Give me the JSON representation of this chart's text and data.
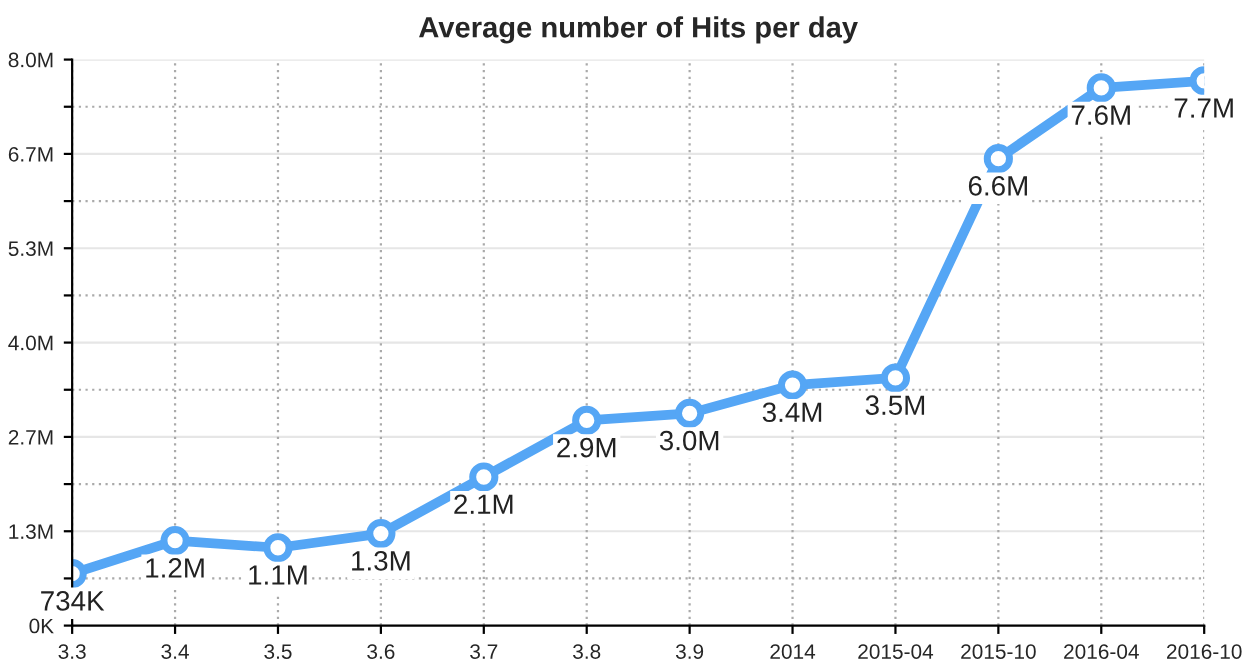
{
  "chart_data": {
    "type": "line",
    "title": "Average number of Hits per day",
    "categories": [
      "3.3",
      "3.4",
      "3.5",
      "3.6",
      "3.7",
      "3.8",
      "3.9",
      "2014",
      "2015-04",
      "2015-10",
      "2016-04",
      "2016-10"
    ],
    "series": [
      {
        "color": "#55a6f5",
        "values": [
          734000,
          1200000,
          1100000,
          1300000,
          2100000,
          2900000,
          3000000,
          3400000,
          3500000,
          6600000,
          7600000,
          7700000
        ],
        "value_labels": [
          "734K",
          "1.2M",
          "1.1M",
          "1.3M",
          "2.1M",
          "2.9M",
          "3.0M",
          "3.4M",
          "3.5M",
          "6.6M",
          "7.6M",
          "7.7M"
        ]
      }
    ],
    "ylim": [
      0,
      8000000
    ],
    "yticks": [
      {
        "value": 0,
        "label": "0K"
      },
      {
        "value": 666667,
        "label": null
      },
      {
        "value": 1333333,
        "label": "1.3M"
      },
      {
        "value": 2000000,
        "label": null
      },
      {
        "value": 2666667,
        "label": "2.7M"
      },
      {
        "value": 3333333,
        "label": null
      },
      {
        "value": 4000000,
        "label": "4.0M"
      },
      {
        "value": 4666667,
        "label": null
      },
      {
        "value": 5333333,
        "label": "5.3M"
      },
      {
        "value": 6000000,
        "label": null
      },
      {
        "value": 6666667,
        "label": "6.7M"
      },
      {
        "value": 7333333,
        "label": null
      },
      {
        "value": 8000000,
        "label": "8.0M"
      }
    ],
    "grid": true,
    "marker": "circle",
    "line_style": "solid",
    "legend": false
  }
}
